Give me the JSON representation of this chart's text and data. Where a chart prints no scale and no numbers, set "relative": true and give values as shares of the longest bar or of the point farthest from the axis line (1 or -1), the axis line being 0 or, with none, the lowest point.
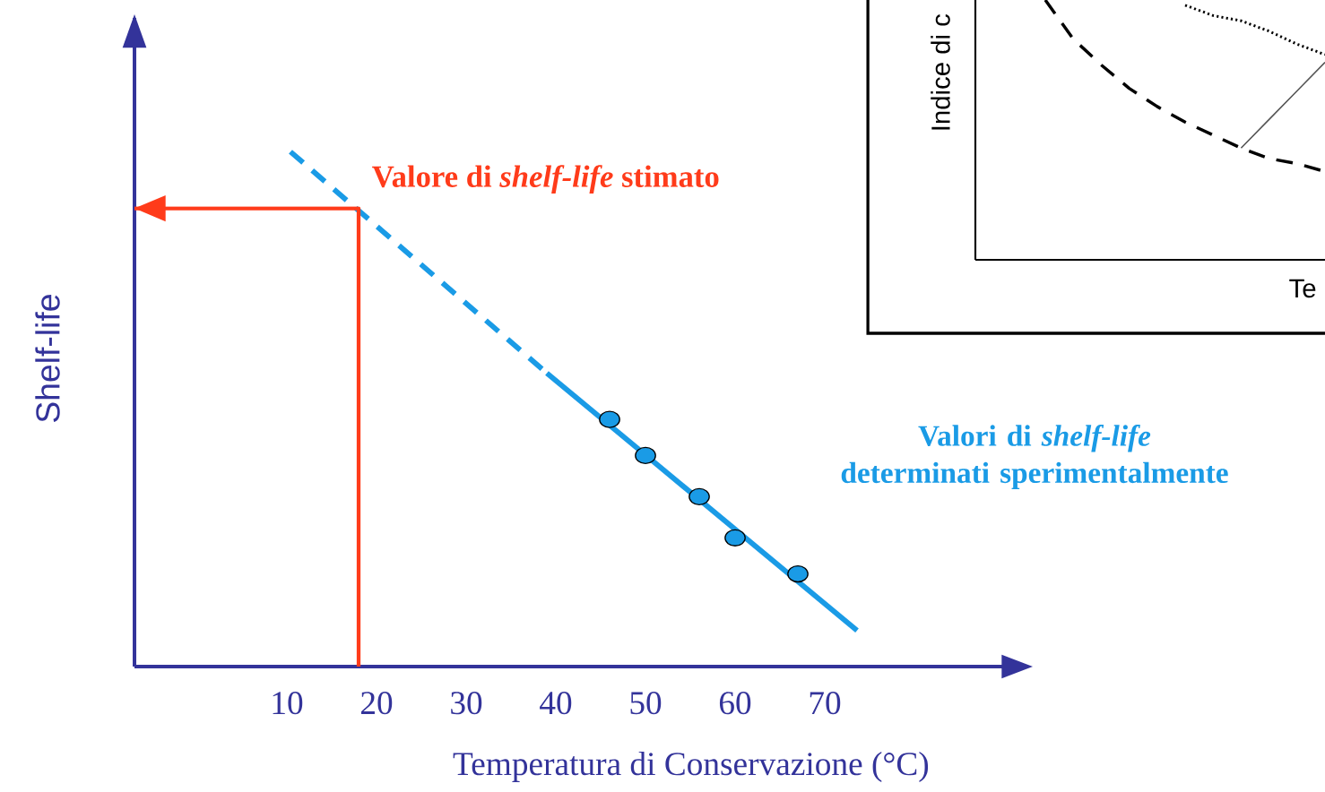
{
  "chart_data": [
    {
      "type": "line",
      "relative": true,
      "xlabel": "Temperatura di Conservazione (°C)",
      "ylabel": "Shelf-life",
      "xlim": [
        -7,
        90
      ],
      "xticks": [
        10,
        20,
        30,
        40,
        50,
        60,
        70
      ],
      "series": [
        {
          "color": "#1a9be6",
          "line_style": "dashed",
          "x": [
            10.4,
            39
          ],
          "values": [
            1.0,
            0.57
          ]
        },
        {
          "color": "#1a9be6",
          "line_style": "solid",
          "x": [
            39,
            73.6
          ],
          "values": [
            0.57,
            0.07
          ]
        },
        {
          "type": "scatter",
          "marker": "circle",
          "color": "#1a9be6",
          "x": [
            46,
            50,
            56,
            60,
            67
          ],
          "values": [
            0.48,
            0.41,
            0.33,
            0.25,
            0.18
          ]
        },
        {
          "color": "#ff3b1a",
          "line_style": "solid",
          "x": [
            18,
            18,
            -7
          ],
          "values": [
            0,
            0.89,
            0.89
          ]
        }
      ],
      "annotations": [
        {
          "text": "Valore di *shelf-life* stimato",
          "x": 18,
          "y": 0.89
        },
        "Valori di *shelf-life* determinati sperimentalmente"
      ]
    },
    {
      "type": "line",
      "relative": true,
      "xlabel": "Te",
      "ylabel": "Indice di c",
      "categories": [
        null,
        null,
        null,
        null,
        null,
        null,
        null,
        null,
        null,
        null,
        null
      ],
      "series": [
        {
          "color": "#000000",
          "line_style": "dashed",
          "values": [
            1.0,
            0.85,
            0.75,
            0.66,
            0.59,
            0.53,
            0.48,
            0.43,
            0.39,
            0.37,
            0.34
          ]
        },
        {
          "color": "#000000",
          "line_style": "dotted",
          "values": [
            null,
            null,
            null,
            null,
            null,
            0.98,
            0.94,
            0.92,
            0.88,
            0.83,
            0.79
          ]
        },
        {
          "color": "#555555",
          "line_style": "solid",
          "values": [
            null,
            null,
            null,
            null,
            null,
            null,
            null,
            0.43,
            0.54,
            0.65,
            0.76
          ]
        }
      ]
    }
  ]
}
